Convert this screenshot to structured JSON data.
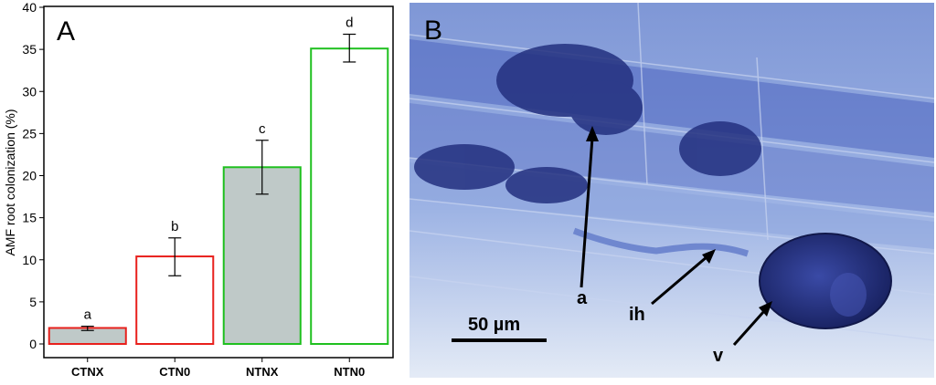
{
  "chart_data": {
    "type": "bar",
    "panel_label": "A",
    "ylabel": "AMF root colonization (%)",
    "xlabel": "",
    "ylim": [
      0,
      40
    ],
    "yticks": [
      "0",
      "5",
      "10",
      "15",
      "20",
      "25",
      "30",
      "35",
      "40"
    ],
    "categories": [
      "CTNX",
      "CTN0",
      "NTNX",
      "NTN0"
    ],
    "values": [
      1.9,
      10.4,
      21.0,
      35.1
    ],
    "error_low": [
      1.6,
      8.1,
      17.8,
      33.5
    ],
    "error_high": [
      2.1,
      12.6,
      24.2,
      36.8
    ],
    "significance_letters": [
      "a",
      "b",
      "c",
      "d"
    ],
    "fill_colors": [
      "#bfc9c8",
      "#ffffff",
      "#bfc9c8",
      "#ffffff"
    ],
    "border_colors": [
      "#e8201c",
      "#e8201c",
      "#1fc01f",
      "#1fc01f"
    ],
    "grid": false
  },
  "micrograph": {
    "panel_label": "B",
    "scale_bar": "50 µm",
    "labels": [
      "a",
      "ih",
      "v"
    ],
    "colors": {
      "background": "#9fb6e3",
      "stain": "#2b3f9c",
      "vesicle": "#1f2e78"
    }
  }
}
